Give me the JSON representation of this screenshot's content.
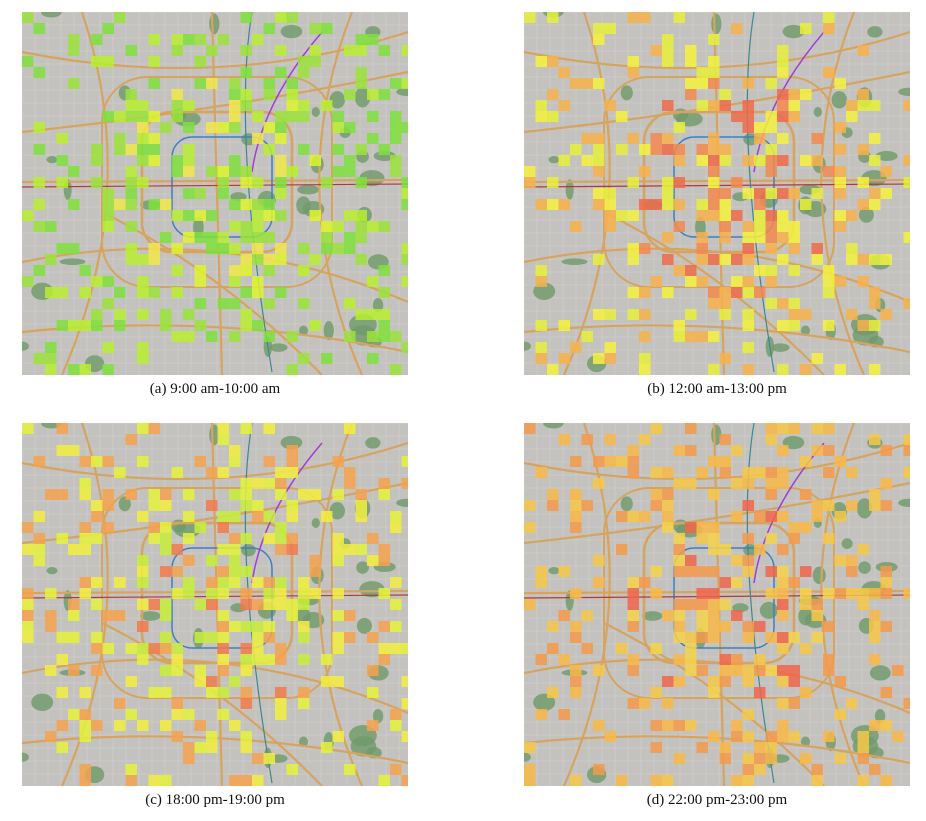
{
  "figure": {
    "panels": [
      {
        "caption": "(a) 9:00 am-10:00 am"
      },
      {
        "caption": "(b) 12:00 am-13:00 pm"
      },
      {
        "caption": "(c) 18:00 pm-19:00 pm"
      },
      {
        "caption": "(d) 22:00 pm-23:00 pm"
      }
    ]
  }
}
